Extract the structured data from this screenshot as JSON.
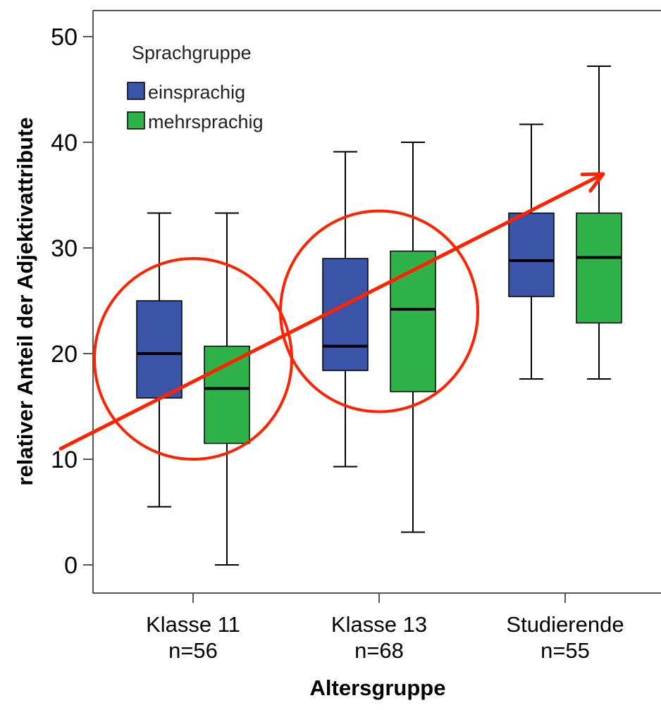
{
  "chart_data": {
    "type": "boxplot",
    "xlabel": "Altersgruppe",
    "ylabel": "relativer Anteil der Adjektivattribute",
    "ylim": [
      0,
      50
    ],
    "yticks": [
      "0",
      "10",
      "20",
      "30",
      "40",
      "50"
    ],
    "ytick_values": [
      0,
      10,
      20,
      30,
      40,
      50
    ],
    "categories": [
      {
        "label": "Klasse 11",
        "n": "n=56"
      },
      {
        "label": "Klasse 13",
        "n": "n=68"
      },
      {
        "label": "Studierende",
        "n": "n=55"
      }
    ],
    "legend": {
      "title": "Sprachgruppe",
      "placement": "top-left"
    },
    "series": [
      {
        "name": "einsprachig",
        "color": "#3a54a8",
        "boxes": [
          {
            "min": 5.5,
            "q1": 15.8,
            "median": 20.0,
            "q3": 25.0,
            "max": 33.3
          },
          {
            "min": 9.3,
            "q1": 18.4,
            "median": 20.7,
            "q3": 29.0,
            "max": 39.1
          },
          {
            "min": 17.6,
            "q1": 25.4,
            "median": 28.8,
            "q3": 33.3,
            "max": 41.7
          }
        ]
      },
      {
        "name": "mehrsprachig",
        "color": "#2fb24a",
        "boxes": [
          {
            "min": 0.0,
            "q1": 11.5,
            "median": 16.7,
            "q3": 20.7,
            "max": 33.3
          },
          {
            "min": 3.1,
            "q1": 16.4,
            "median": 24.2,
            "q3": 29.7,
            "max": 40.0
          },
          {
            "min": 17.6,
            "q1": 22.9,
            "median": 29.1,
            "q3": 33.3,
            "max": 47.2
          }
        ]
      }
    ],
    "annotations": {
      "color": "#ff2200",
      "circles": [
        {
          "category": "Klasse 11",
          "center_y": 19.5,
          "radius_y": 9.5
        },
        {
          "category": "Klasse 13",
          "center_y": 24.0,
          "radius_y": 9.5
        }
      ],
      "arrow": {
        "from_y": 11.0,
        "to_y": 37.0
      }
    }
  }
}
